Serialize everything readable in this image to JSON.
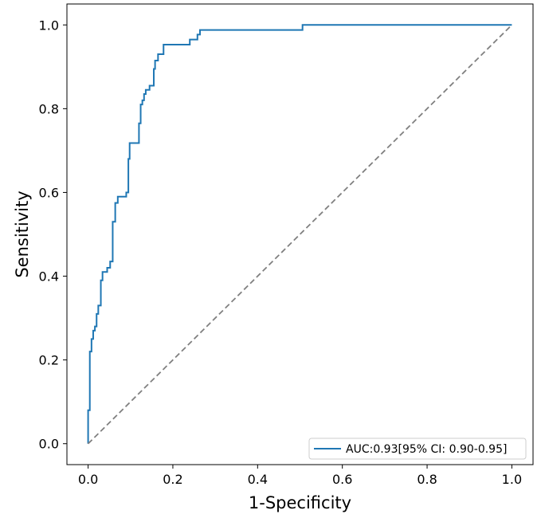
{
  "chart_data": {
    "type": "line",
    "title": "",
    "xlabel": "1-Specificity",
    "ylabel": "Sensitivity",
    "xlim": [
      -0.05,
      1.05
    ],
    "ylim": [
      -0.05,
      1.05
    ],
    "grid": false,
    "legend_placement": "lower-right",
    "x_ticks": [
      0.0,
      0.2,
      0.4,
      0.6,
      0.8,
      1.0
    ],
    "x_tick_labels": [
      "0.0",
      "0.2",
      "0.4",
      "0.6",
      "0.8",
      "1.0"
    ],
    "y_ticks": [
      0.0,
      0.2,
      0.4,
      0.6,
      0.8,
      1.0
    ],
    "y_tick_labels": [
      "0.0",
      "0.2",
      "0.4",
      "0.6",
      "0.8",
      "1.0"
    ],
    "series": [
      {
        "name": "AUC:0.93[95% CI: 0.90-0.95]",
        "color": "#1f77b4",
        "style": "step",
        "points": [
          [
            0.0,
            0.0
          ],
          [
            0.0,
            0.08
          ],
          [
            0.004,
            0.08
          ],
          [
            0.004,
            0.22
          ],
          [
            0.008,
            0.22
          ],
          [
            0.008,
            0.25
          ],
          [
            0.012,
            0.25
          ],
          [
            0.012,
            0.27
          ],
          [
            0.016,
            0.27
          ],
          [
            0.016,
            0.28
          ],
          [
            0.02,
            0.28
          ],
          [
            0.02,
            0.31
          ],
          [
            0.024,
            0.31
          ],
          [
            0.024,
            0.33
          ],
          [
            0.03,
            0.33
          ],
          [
            0.03,
            0.39
          ],
          [
            0.034,
            0.39
          ],
          [
            0.034,
            0.41
          ],
          [
            0.045,
            0.41
          ],
          [
            0.045,
            0.42
          ],
          [
            0.052,
            0.42
          ],
          [
            0.052,
            0.435
          ],
          [
            0.058,
            0.435
          ],
          [
            0.058,
            0.53
          ],
          [
            0.064,
            0.53
          ],
          [
            0.064,
            0.575
          ],
          [
            0.07,
            0.575
          ],
          [
            0.07,
            0.59
          ],
          [
            0.09,
            0.59
          ],
          [
            0.09,
            0.6
          ],
          [
            0.095,
            0.6
          ],
          [
            0.095,
            0.68
          ],
          [
            0.098,
            0.68
          ],
          [
            0.098,
            0.718
          ],
          [
            0.12,
            0.718
          ],
          [
            0.12,
            0.765
          ],
          [
            0.124,
            0.765
          ],
          [
            0.124,
            0.81
          ],
          [
            0.128,
            0.81
          ],
          [
            0.128,
            0.82
          ],
          [
            0.132,
            0.82
          ],
          [
            0.132,
            0.835
          ],
          [
            0.136,
            0.835
          ],
          [
            0.136,
            0.845
          ],
          [
            0.145,
            0.845
          ],
          [
            0.145,
            0.855
          ],
          [
            0.155,
            0.855
          ],
          [
            0.155,
            0.895
          ],
          [
            0.158,
            0.895
          ],
          [
            0.158,
            0.915
          ],
          [
            0.165,
            0.915
          ],
          [
            0.165,
            0.93
          ],
          [
            0.178,
            0.93
          ],
          [
            0.178,
            0.953
          ],
          [
            0.24,
            0.953
          ],
          [
            0.24,
            0.965
          ],
          [
            0.258,
            0.965
          ],
          [
            0.258,
            0.977
          ],
          [
            0.264,
            0.977
          ],
          [
            0.264,
            0.988
          ],
          [
            0.506,
            0.988
          ],
          [
            0.506,
            1.0
          ],
          [
            1.0,
            1.0
          ]
        ]
      },
      {
        "name": "",
        "color": "#808080",
        "style": "dashed",
        "points": [
          [
            0.0,
            0.0
          ],
          [
            1.0,
            1.0
          ]
        ]
      }
    ]
  }
}
